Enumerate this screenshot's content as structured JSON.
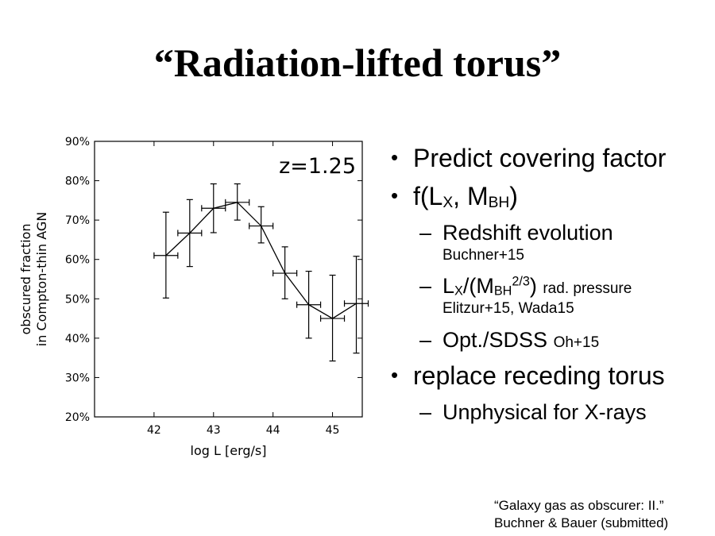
{
  "slide": {
    "title": "“Radiation-lifted torus”"
  },
  "bullets": {
    "b1": "Predict covering factor",
    "b2": {
      "prefix": "f(L",
      "sub1": "X",
      "mid": ", M",
      "sub2": "BH",
      "suffix": ")"
    },
    "b2_items": {
      "i1": {
        "text": "Redshift evolution",
        "note": "Buchner+15"
      },
      "i2": {
        "l": "L",
        "sub1": "X",
        "mid": "/(M",
        "sub2": "BH",
        "sup": "2/3",
        "close": ")",
        "small": "rad. pressure",
        "note": "Elitzur+15, Wada15"
      },
      "i3": {
        "text": "Opt./SDSS",
        "small": "Oh+15"
      }
    },
    "b3": "replace receding torus",
    "b3_items": {
      "i1": "Unphysical for X-rays"
    }
  },
  "citation": {
    "line1": "“Galaxy gas as obscurer: II.”",
    "line2": "Buchner & Bauer (submitted)"
  },
  "chart_data": {
    "type": "line",
    "annotation": "z=1.25",
    "xlabel": "log L [erg/s]",
    "ylabel_lines": [
      "obscured fraction",
      "in Compton-thin AGN"
    ],
    "xlim": [
      41,
      45.5
    ],
    "ylim": [
      20,
      90
    ],
    "xticks": [
      42,
      43,
      44,
      45
    ],
    "yticks": [
      20,
      30,
      40,
      50,
      60,
      70,
      80,
      90
    ],
    "ytick_format": "%",
    "grid": false,
    "legend": "none",
    "line_color": "#000000",
    "points": [
      {
        "x": 42.2,
        "y": 61.0,
        "xerr": 0.2,
        "ylo": 50.2,
        "yhi": 72.0
      },
      {
        "x": 42.6,
        "y": 66.7,
        "xerr": 0.2,
        "ylo": 58.2,
        "yhi": 75.2
      },
      {
        "x": 43.0,
        "y": 73.0,
        "xerr": 0.2,
        "ylo": 66.8,
        "yhi": 79.2
      },
      {
        "x": 43.4,
        "y": 74.5,
        "xerr": 0.2,
        "ylo": 70.0,
        "yhi": 79.2
      },
      {
        "x": 43.8,
        "y": 68.5,
        "xerr": 0.2,
        "ylo": 64.2,
        "yhi": 73.4
      },
      {
        "x": 44.2,
        "y": 56.5,
        "xerr": 0.2,
        "ylo": 50.0,
        "yhi": 63.2
      },
      {
        "x": 44.6,
        "y": 48.5,
        "xerr": 0.2,
        "ylo": 40.0,
        "yhi": 57.0
      },
      {
        "x": 45.0,
        "y": 45.0,
        "xerr": 0.2,
        "ylo": 34.2,
        "yhi": 56.0
      },
      {
        "x": 45.4,
        "y": 48.8,
        "xerr": 0.2,
        "ylo": 36.2,
        "yhi": 60.8
      }
    ]
  }
}
